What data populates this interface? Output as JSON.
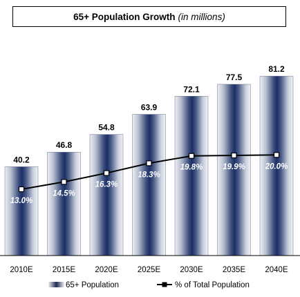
{
  "chart_data": {
    "type": "bar",
    "title": "65+ Population Growth",
    "subtitle": "in millions",
    "categories": [
      "2010E",
      "2015E",
      "2020E",
      "2025E",
      "2030E",
      "2035E",
      "2040E"
    ],
    "series": [
      {
        "name": "65+ Population",
        "type": "bar",
        "values": [
          40.2,
          46.8,
          54.8,
          63.9,
          72.1,
          77.5,
          81.2
        ],
        "value_labels": [
          "40.2",
          "46.8",
          "54.8",
          "63.9",
          "72.1",
          "77.5",
          "81.2"
        ]
      },
      {
        "name": "% of Total Population",
        "type": "line",
        "values": [
          13.0,
          14.5,
          16.3,
          18.3,
          19.8,
          19.9,
          20.0
        ],
        "value_labels": [
          "13.0%",
          "14.5%",
          "16.3%",
          "18.3%",
          "19.8%",
          "19.9%",
          "20.0%"
        ]
      }
    ],
    "grid": false,
    "legend_position": "bottom",
    "colors": {
      "bar_dark": "#1b2f66",
      "bar_light": "#eef0f4",
      "line": "#000000"
    }
  }
}
